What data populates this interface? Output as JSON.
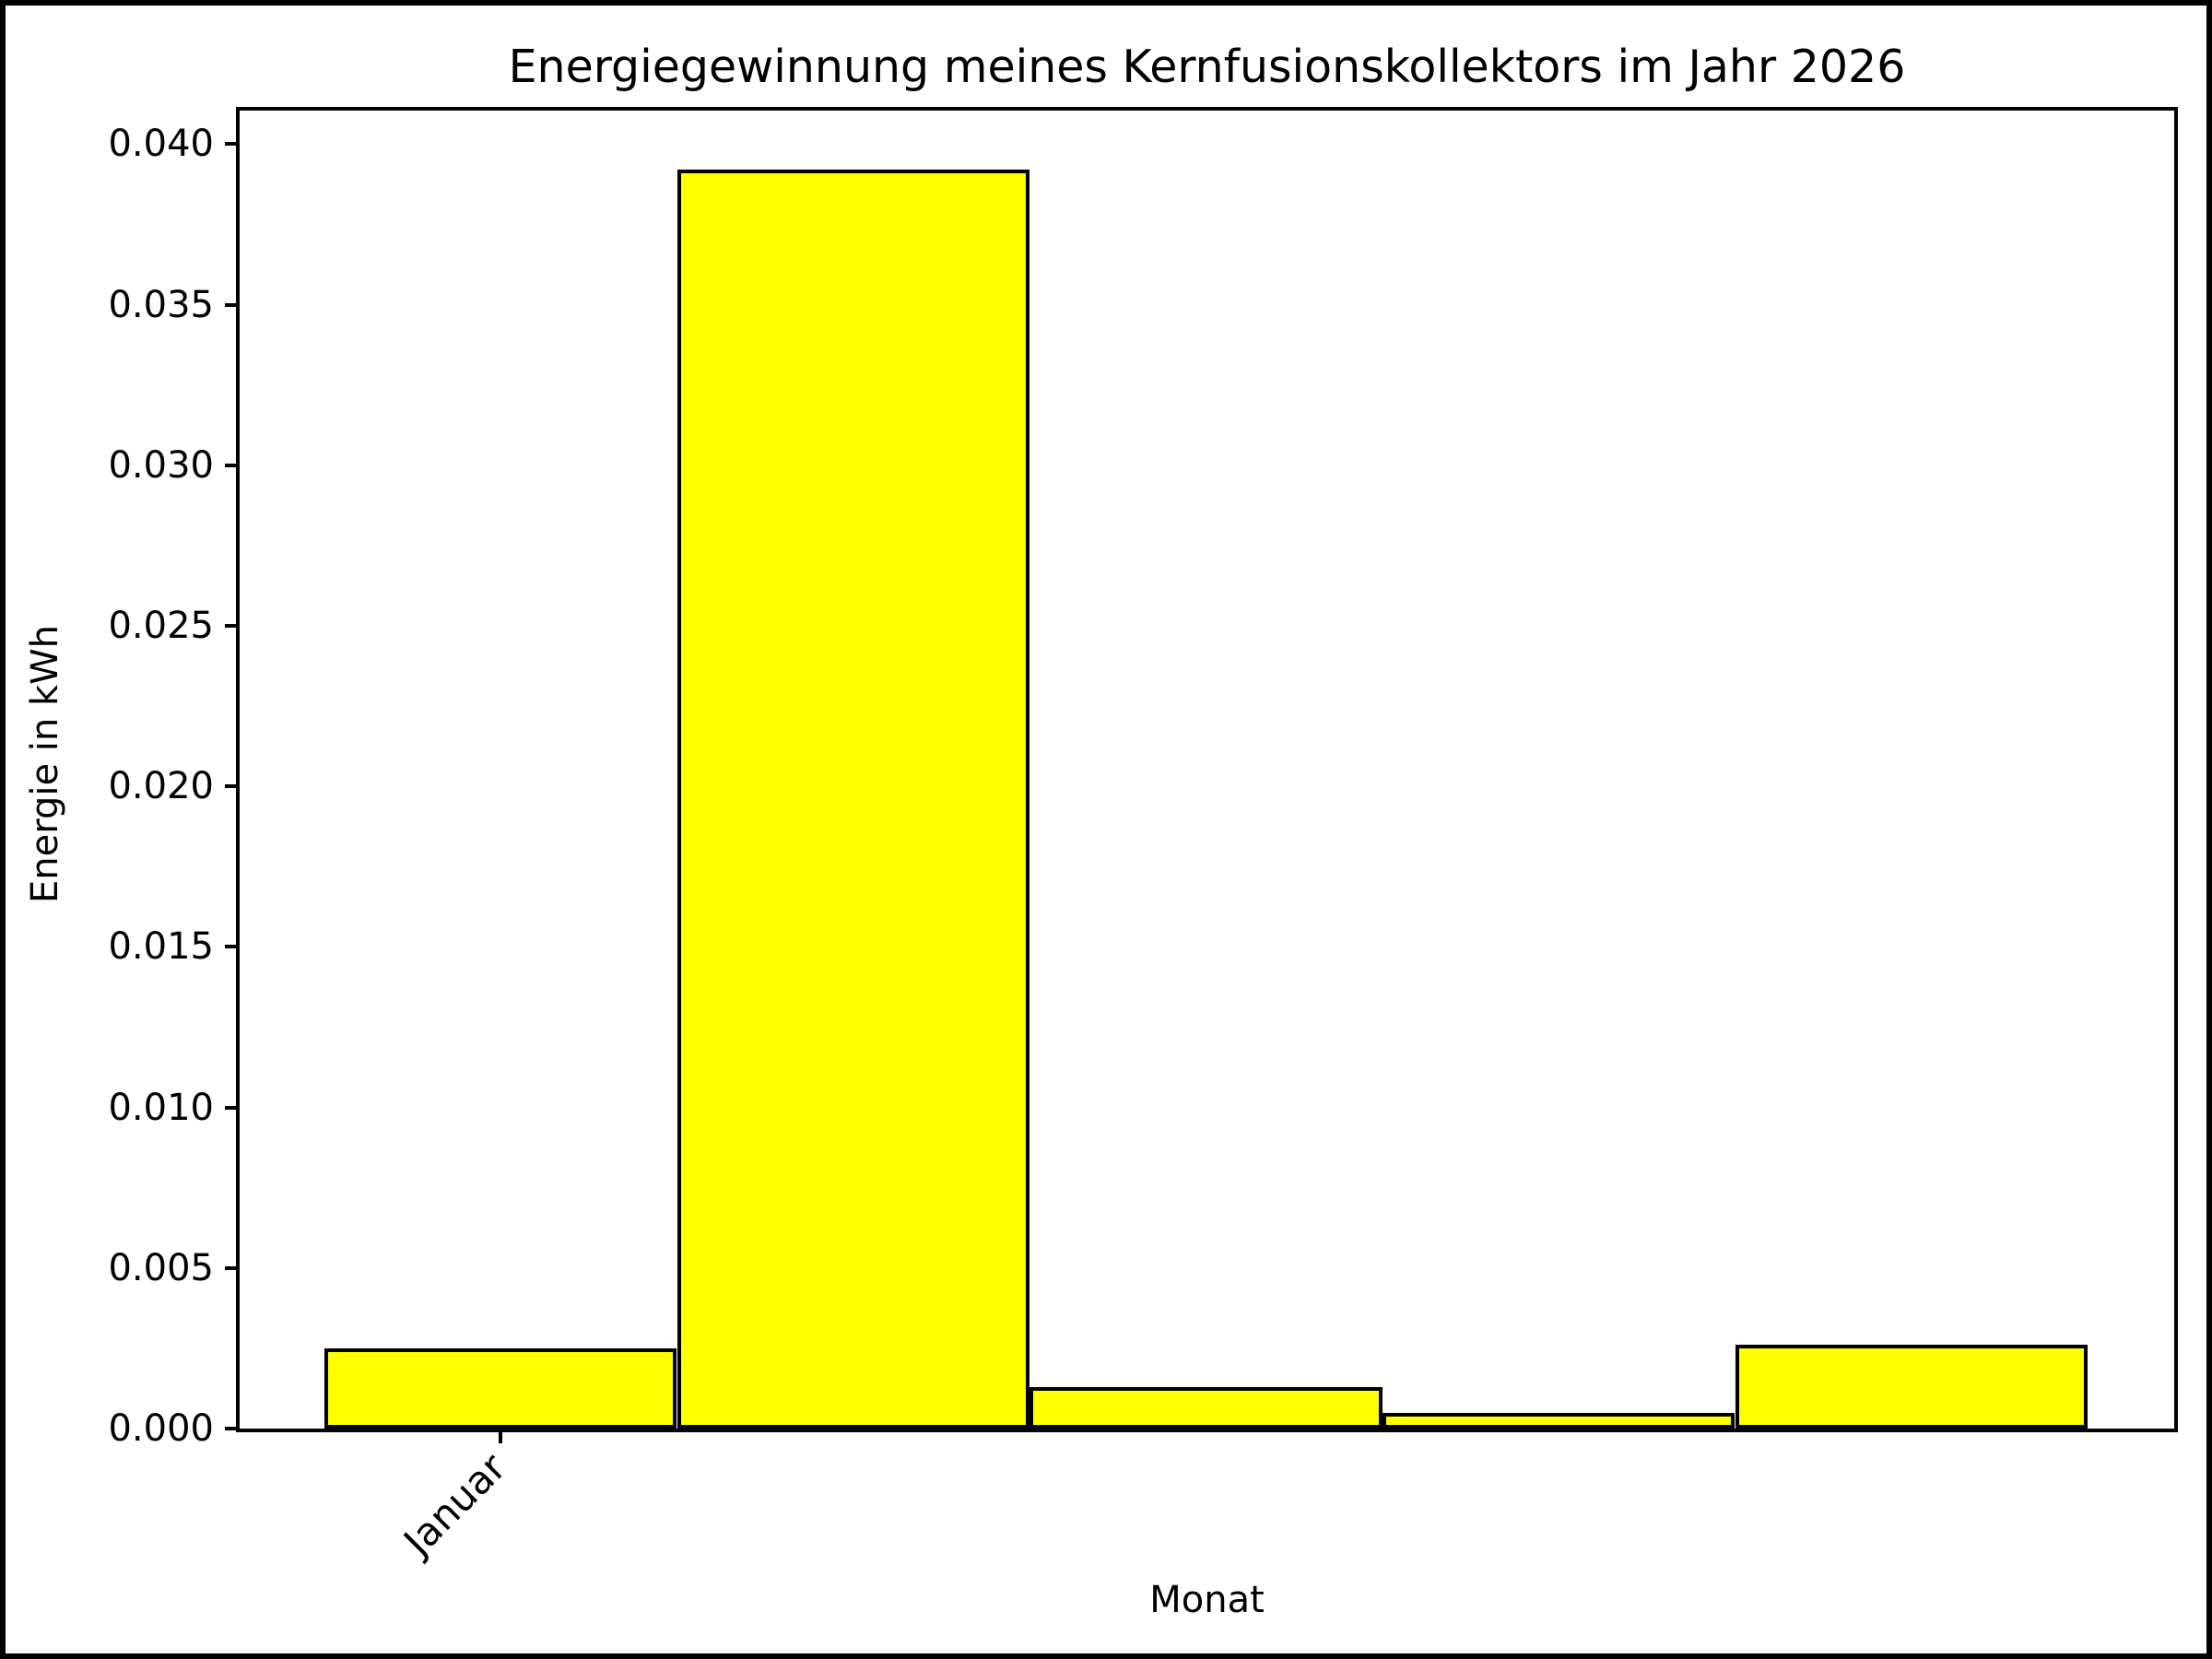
{
  "chart_data": {
    "type": "bar",
    "title": "Energiegewinnung meines Kernfusionskollektors im Jahr 2026",
    "xlabel": "Monat",
    "ylabel": "Energie in kWh",
    "x": [
      0,
      1,
      2,
      3,
      4
    ],
    "values": [
      0.0025,
      0.0392,
      0.0013,
      0.0005,
      0.0026
    ],
    "bar_width": 1.0,
    "bar_color": "#ffff00",
    "bar_edge_color": "#000000",
    "xlim": [
      -0.745,
      4.745
    ],
    "ylim": [
      0,
      0.0411
    ],
    "x_tick_positions": [
      0
    ],
    "x_tick_labels": [
      "Januar"
    ],
    "x_tick_rotation_deg": 45,
    "y_ticks": [
      0,
      0.005,
      0.01,
      0.015,
      0.02,
      0.025,
      0.03,
      0.035,
      0.04
    ],
    "y_tick_labels": [
      "0.000",
      "0.005",
      "0.010",
      "0.015",
      "0.020",
      "0.025",
      "0.030",
      "0.035",
      "0.040"
    ],
    "grid": false,
    "legend": false,
    "background": "#ffffff"
  }
}
